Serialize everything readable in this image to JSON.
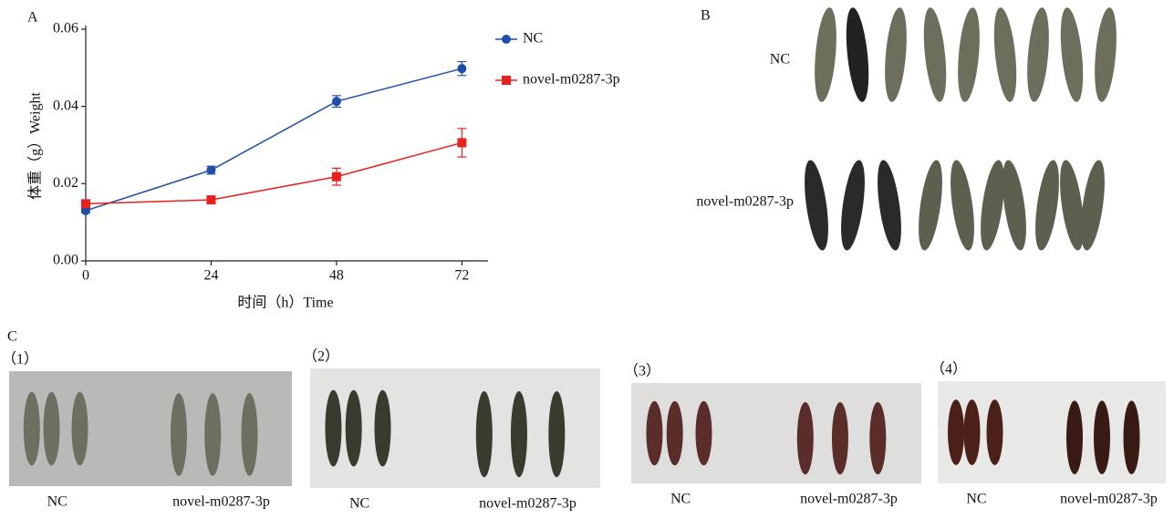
{
  "chart_data": {
    "type": "line",
    "panel_label": "A",
    "xlabel": "时间（h）Time",
    "ylabel": "体重（g）Weight",
    "x": [
      0,
      24,
      48,
      72
    ],
    "xlim": [
      0,
      77
    ],
    "xticks": [
      0,
      24,
      48,
      72
    ],
    "ylim": [
      0,
      0.06
    ],
    "yticks": [
      {
        "value": 0,
        "label": "0.00"
      },
      {
        "value": 0.02,
        "label": "0.02"
      },
      {
        "value": 0.04,
        "label": "0.04"
      },
      {
        "value": 0.06,
        "label": "0.06"
      }
    ],
    "series": [
      {
        "name": "NC",
        "color": "#1f4fa8",
        "marker": "circle",
        "values": [
          0.013,
          0.0235,
          0.0413,
          0.0498
        ],
        "errors": [
          0.0005,
          0.001,
          0.0015,
          0.0018
        ]
      },
      {
        "name": "novel-m0287-3p",
        "color": "#e8211f",
        "marker": "square",
        "values": [
          0.0148,
          0.0158,
          0.0218,
          0.0306
        ],
        "errors": [
          0.0005,
          0.0005,
          0.0022,
          0.0037
        ]
      }
    ]
  },
  "panel_b": {
    "label": "B",
    "rows": [
      "NC",
      "novel-m0287-3p"
    ]
  },
  "panel_c": {
    "label": "C",
    "photos": [
      {
        "label": "（1）",
        "left": "NC",
        "right": "novel-m0287-3p"
      },
      {
        "label": "（2）",
        "left": "NC",
        "right": "novel-m0287-3p"
      },
      {
        "label": "（3）",
        "left": "NC",
        "right": "novel-m0287-3p"
      },
      {
        "label": "（4）",
        "left": "NC",
        "right": "novel-m0287-3p"
      }
    ]
  }
}
